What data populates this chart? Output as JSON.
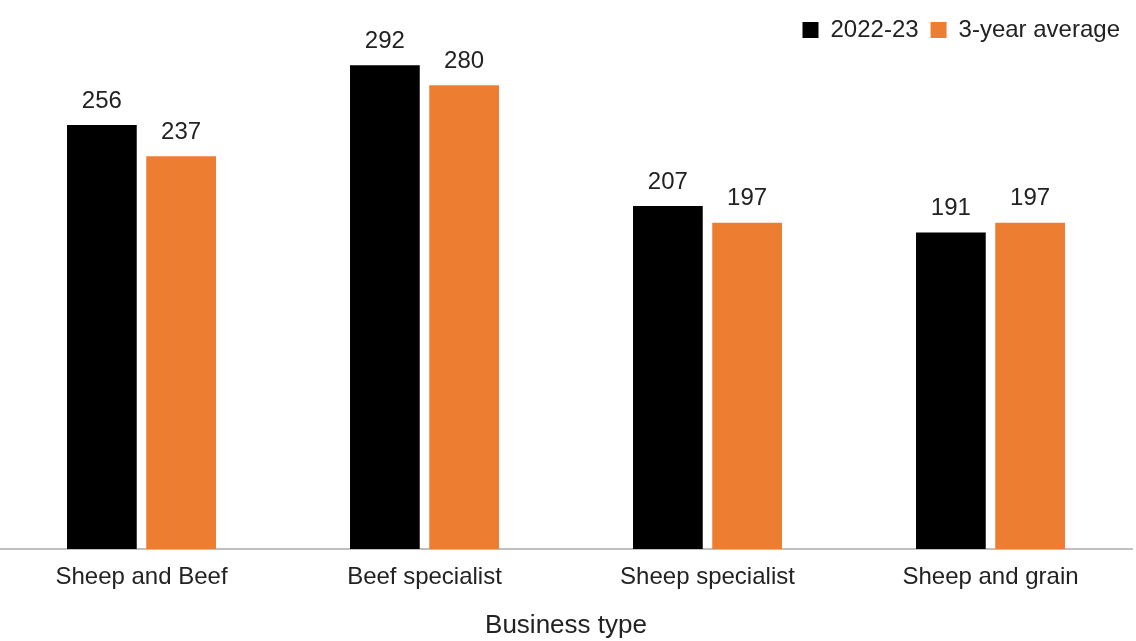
{
  "chart_data": {
    "type": "bar",
    "xlabel": "Business type",
    "categories": [
      "Sheep and Beef",
      "Beef specialist",
      "Sheep specialist",
      "Sheep and grain"
    ],
    "series": [
      {
        "name": "2022-23",
        "color": "#000000",
        "values": [
          256,
          292,
          207,
          191
        ]
      },
      {
        "name": "3-year average",
        "color": "#ed7d31",
        "values": [
          237,
          280,
          197,
          197
        ]
      }
    ],
    "data_labels": true,
    "grid": false,
    "legend": "top right",
    "tick_labels": "x"
  }
}
